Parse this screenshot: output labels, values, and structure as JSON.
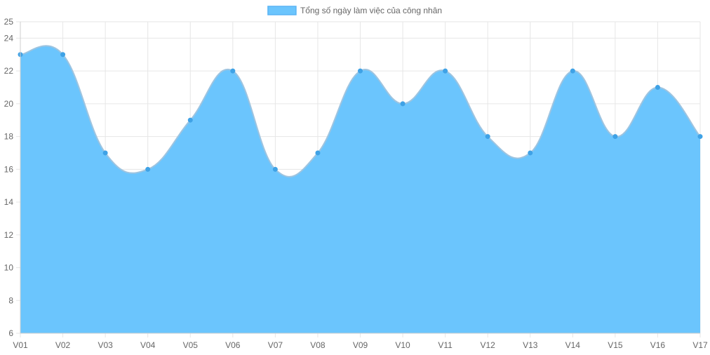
{
  "chart_data": {
    "type": "area",
    "title": "",
    "xlabel": "",
    "ylabel": "",
    "categories": [
      "V01",
      "V02",
      "V03",
      "V04",
      "V05",
      "V06",
      "V07",
      "V08",
      "V09",
      "V10",
      "V11",
      "V12",
      "V13",
      "V14",
      "V15",
      "V16",
      "V17"
    ],
    "series": [
      {
        "name": "Tổng số ngày làm việc của công nhân",
        "values": [
          23,
          23,
          17,
          16,
          19,
          22,
          16,
          17,
          22,
          20,
          22,
          18,
          17,
          22,
          18,
          21,
          18
        ]
      }
    ],
    "ylim": [
      6,
      25
    ],
    "yticks": [
      6,
      8,
      10,
      12,
      14,
      16,
      18,
      20,
      22,
      24,
      25
    ],
    "grid": true,
    "legend_position": "top",
    "colors": {
      "fill": "#6bc5fd",
      "line": "#9ec4e0",
      "point": "#3fa2e6",
      "legend_border": "#5ab4f5",
      "grid": "#e6e6e6",
      "axis": "#cfcfcf"
    }
  }
}
